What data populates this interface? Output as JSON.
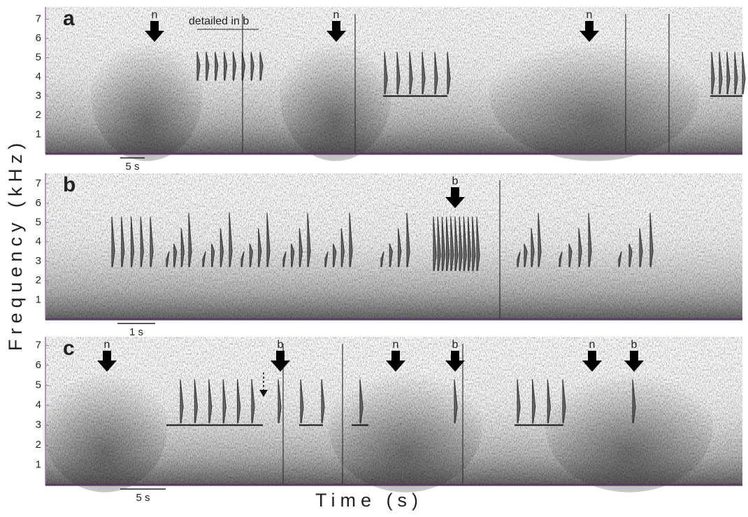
{
  "axis_labels": {
    "y": "Frequency (kHz)",
    "x": "Time (s)"
  },
  "panels": [
    {
      "label": "a",
      "yticks": [
        1,
        2,
        3,
        4,
        5,
        6,
        7
      ],
      "scale_bar": "5 s",
      "note": "detailed in b",
      "arrows": [
        "n",
        "n",
        "n"
      ]
    },
    {
      "label": "b",
      "yticks": [
        1,
        2,
        3,
        4,
        5,
        6,
        7
      ],
      "scale_bar": "1 s",
      "arrows": [
        "b"
      ]
    },
    {
      "label": "c",
      "yticks": [
        1,
        2,
        3,
        4,
        5,
        6,
        7
      ],
      "scale_bar": "5 s",
      "arrows": [
        "n",
        "b",
        "n",
        "b",
        "n",
        "b"
      ]
    }
  ]
}
